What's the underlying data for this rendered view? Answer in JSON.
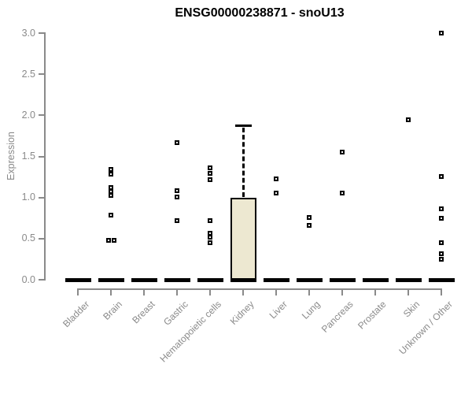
{
  "title": "ENSG00000238871 - snoU13",
  "y_axis": {
    "label": "Expression",
    "ticks": [
      "0.0",
      "0.5",
      "1.0",
      "1.5",
      "2.0",
      "2.5",
      "3.0"
    ]
  },
  "colors": {
    "box_fill": "#EDE8D1",
    "line": "#000000",
    "axis": "#8a8a8a",
    "title_color": "#000000",
    "point_fill": "#ffffff"
  },
  "chart_data": {
    "type": "boxplot",
    "title": "ENSG00000238871 - snoU13",
    "xlabel": "",
    "ylabel": "Expression",
    "ylim": [
      0,
      3.0
    ],
    "ytick_step": 0.5,
    "grid": false,
    "legend": false,
    "categories": [
      "Bladder",
      "Brain",
      "Breast",
      "Gastric",
      "Hematopoietic cells",
      "Kidney",
      "Liver",
      "Lung",
      "Pancreas",
      "Prostate",
      "Skin",
      "Unknown / Other"
    ],
    "boxes": [
      {
        "category": "Bladder",
        "whisker_low": 0,
        "q1": 0,
        "median": 0,
        "q3": 0,
        "whisker_high": 0,
        "outliers": []
      },
      {
        "category": "Brain",
        "whisker_low": 0,
        "q1": 0,
        "median": 0,
        "q3": 0,
        "whisker_high": 0,
        "outliers": [
          1.34,
          1.28,
          1.12,
          1.07,
          1.03,
          0.79,
          0.48,
          0.48
        ]
      },
      {
        "category": "Breast",
        "whisker_low": 0,
        "q1": 0,
        "median": 0,
        "q3": 0,
        "whisker_high": 0,
        "outliers": []
      },
      {
        "category": "Gastric",
        "whisker_low": 0,
        "q1": 0,
        "median": 0,
        "q3": 0,
        "whisker_high": 0,
        "outliers": [
          1.67,
          1.08,
          1.01,
          0.72
        ]
      },
      {
        "category": "Hematopoietic cells",
        "whisker_low": 0,
        "q1": 0,
        "median": 0,
        "q3": 0,
        "whisker_high": 0,
        "outliers": [
          1.36,
          1.29,
          1.22,
          0.72,
          0.57,
          0.52,
          0.45
        ]
      },
      {
        "category": "Kidney",
        "whisker_low": 0,
        "q1": 0,
        "median": 0,
        "q3": 1.0,
        "whisker_high": 1.87,
        "outliers": []
      },
      {
        "category": "Liver",
        "whisker_low": 0,
        "q1": 0,
        "median": 0,
        "q3": 0,
        "whisker_high": 0,
        "outliers": [
          1.23,
          1.05
        ]
      },
      {
        "category": "Lung",
        "whisker_low": 0,
        "q1": 0,
        "median": 0,
        "q3": 0,
        "whisker_high": 0,
        "outliers": [
          0.76,
          0.66
        ]
      },
      {
        "category": "Pancreas",
        "whisker_low": 0,
        "q1": 0,
        "median": 0,
        "q3": 0,
        "whisker_high": 0,
        "outliers": [
          1.55,
          1.05
        ]
      },
      {
        "category": "Prostate",
        "whisker_low": 0,
        "q1": 0,
        "median": 0,
        "q3": 0,
        "whisker_high": 0,
        "outliers": []
      },
      {
        "category": "Skin",
        "whisker_low": 0,
        "q1": 0,
        "median": 0,
        "q3": 0,
        "whisker_high": 0,
        "outliers": [
          1.95
        ]
      },
      {
        "category": "Unknown / Other",
        "whisker_low": 0,
        "q1": 0,
        "median": 0,
        "q3": 0,
        "whisker_high": 0,
        "outliers": [
          3.0,
          1.26,
          0.86,
          0.75,
          0.45,
          0.32,
          0.25
        ]
      }
    ]
  }
}
